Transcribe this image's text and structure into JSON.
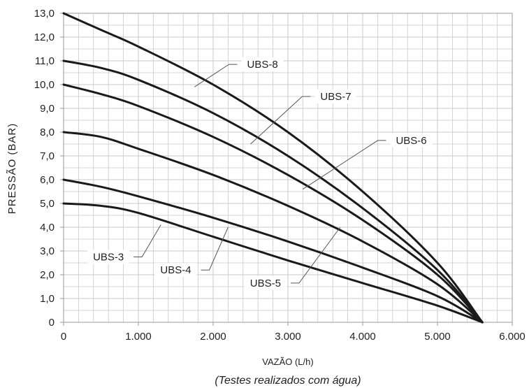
{
  "chart_data": {
    "type": "line",
    "xlabel": "VAZÃO (L/h)",
    "ylabel": "PRESSÃO (BAR)",
    "caption": "(Testes realizados com água)",
    "xlim": [
      0,
      6000
    ],
    "ylim": [
      0,
      13
    ],
    "x_ticks": [
      "0",
      "1.000",
      "2.000",
      "3.000",
      "4.000",
      "5.000",
      "6.000"
    ],
    "y_ticks": [
      "0",
      "1,0",
      "2,0",
      "3,0",
      "4,0",
      "5,0",
      "6,0",
      "7,0",
      "8,0",
      "9,0",
      "10,0",
      "11,0",
      "12,0",
      "13,0"
    ],
    "grid": true,
    "x_minor_step": 200,
    "y_minor_step": 0.5,
    "series": [
      {
        "name": "UBS-3",
        "x": [
          0,
          500,
          1000,
          2000,
          3000,
          4000,
          5000,
          5600
        ],
        "values": [
          5.0,
          4.9,
          4.6,
          3.6,
          2.6,
          1.65,
          0.7,
          0.0
        ]
      },
      {
        "name": "UBS-4",
        "x": [
          0,
          500,
          1000,
          2000,
          3000,
          4000,
          5000,
          5600
        ],
        "values": [
          6.0,
          5.7,
          5.3,
          4.4,
          3.4,
          2.3,
          1.1,
          0.0
        ]
      },
      {
        "name": "UBS-5",
        "x": [
          0,
          500,
          1000,
          2000,
          3000,
          4000,
          5000,
          5600
        ],
        "values": [
          8.0,
          7.8,
          7.3,
          6.2,
          4.9,
          3.4,
          1.6,
          0.0
        ]
      },
      {
        "name": "UBS-6",
        "x": [
          0,
          500,
          1000,
          2000,
          3000,
          4000,
          5000,
          5600
        ],
        "values": [
          10.0,
          9.6,
          9.1,
          7.8,
          6.2,
          4.3,
          2.0,
          0.0
        ]
      },
      {
        "name": "UBS-7",
        "x": [
          0,
          500,
          1000,
          2000,
          3000,
          4000,
          5000,
          5600
        ],
        "values": [
          11.0,
          10.7,
          10.2,
          8.8,
          7.0,
          4.8,
          2.2,
          0.0
        ]
      },
      {
        "name": "UBS-8",
        "x": [
          0,
          500,
          1000,
          2000,
          3000,
          4000,
          5000,
          5600
        ],
        "values": [
          13.0,
          12.3,
          11.6,
          10.0,
          8.0,
          5.5,
          2.5,
          0.0
        ]
      }
    ],
    "annotations": [
      {
        "text": "UBS-3",
        "series": "UBS-3",
        "point_x": 1300,
        "point_y": 4.1,
        "label_x": 600,
        "label_y": 2.75
      },
      {
        "text": "UBS-4",
        "series": "UBS-4",
        "point_x": 2200,
        "point_y": 4.0,
        "label_x": 1500,
        "label_y": 2.2
      },
      {
        "text": "UBS-5",
        "series": "UBS-5",
        "point_x": 3700,
        "point_y": 4.0,
        "label_x": 2700,
        "label_y": 1.65
      },
      {
        "text": "UBS-6",
        "series": "UBS-6",
        "point_x": 3200,
        "point_y": 5.6,
        "label_x": 4650,
        "label_y": 7.65
      },
      {
        "text": "UBS-7",
        "series": "UBS-7",
        "point_x": 2500,
        "point_y": 7.5,
        "label_x": 3640,
        "label_y": 9.5
      },
      {
        "text": "UBS-8",
        "series": "UBS-8",
        "point_x": 1750,
        "point_y": 9.9,
        "label_x": 2660,
        "label_y": 10.85
      }
    ],
    "line_color": "#1a1a1a",
    "grid_color": "#c9c9c9",
    "frame_color": "#9a9a9a",
    "leader_color": "#555555"
  }
}
